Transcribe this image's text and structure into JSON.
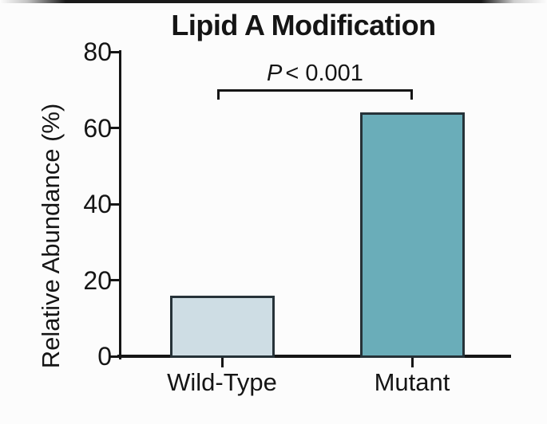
{
  "figure": {
    "background": "#fcfcfc",
    "top_strip_color": "#1a1a1a"
  },
  "chart_data": {
    "type": "bar",
    "title": "Lipid A Modification",
    "categories": [
      "Wild-Type",
      "Mutant"
    ],
    "values": [
      16,
      64
    ],
    "xlabel": "",
    "ylabel": "Relative Abundance (%)",
    "ylim": [
      0,
      80
    ],
    "yticks": [
      0,
      20,
      40,
      60,
      80
    ],
    "bar_colors": [
      "#cedde4",
      "#6aadb9"
    ],
    "bar_border_color": "#263238",
    "axis_color": "#151515",
    "grid": false,
    "legend": false,
    "annotation": {
      "type": "significance-bracket",
      "text": "P < 0.001",
      "p_label": "P",
      "comparison": "< 0.001",
      "between": [
        "Wild-Type",
        "Mutant"
      ]
    }
  }
}
